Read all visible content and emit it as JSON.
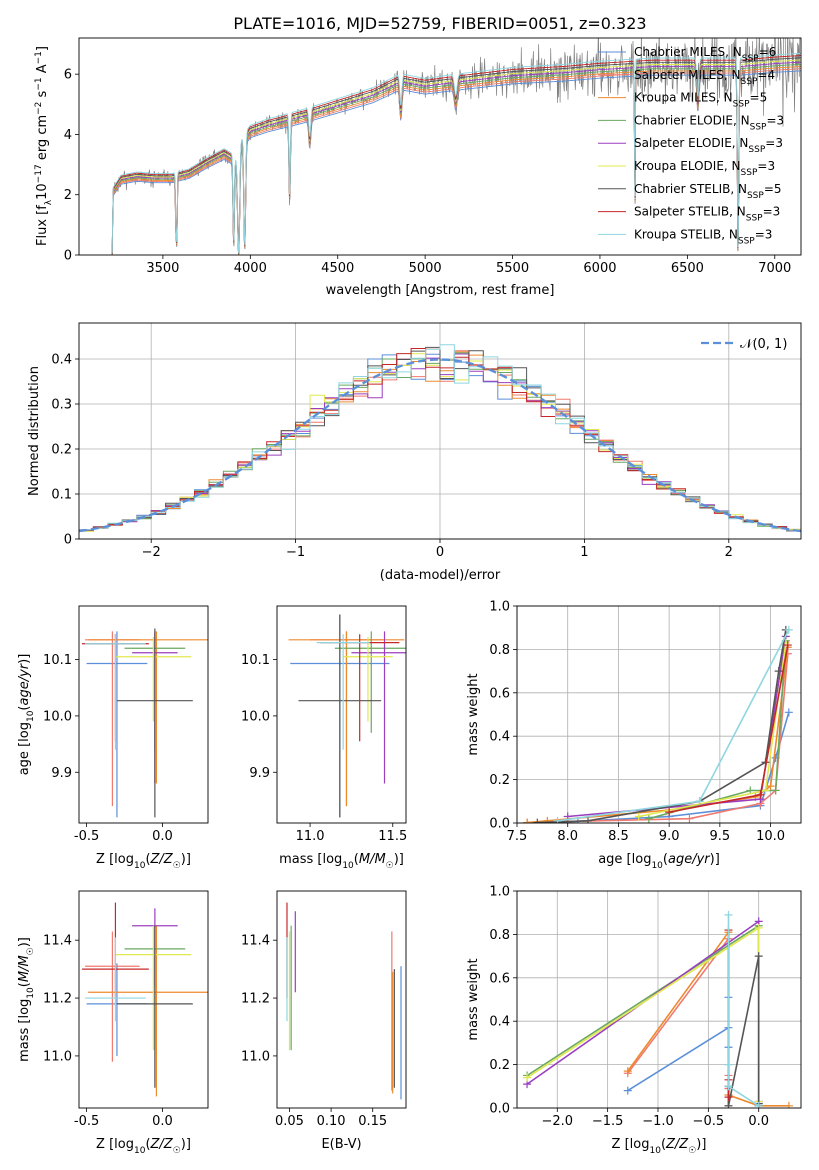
{
  "figure": {
    "title": "PLATE=1016, MJD=52759, FIBERID=0051, z=0.323"
  },
  "series_styles": [
    {
      "name": "Chabrier MILES",
      "nssp": "6",
      "color": "#5b8fd9"
    },
    {
      "name": "Salpeter MILES",
      "nssp": "4",
      "color": "#f07a6f"
    },
    {
      "name": "Kroupa MILES",
      "nssp": "5",
      "color": "#ee8a2e"
    },
    {
      "name": "Chabrier ELODIE",
      "nssp": "3",
      "color": "#6aa860"
    },
    {
      "name": "Salpeter ELODIE",
      "nssp": "3",
      "color": "#9b3fbf"
    },
    {
      "name": "Kroupa ELODIE",
      "nssp": "3",
      "color": "#e0e84f"
    },
    {
      "name": "Chabrier STELIB",
      "nssp": "5",
      "color": "#555555"
    },
    {
      "name": "Salpeter STELIB",
      "nssp": "3",
      "color": "#c62828"
    },
    {
      "name": "Kroupa STELIB",
      "nssp": "3",
      "color": "#8fd6e0"
    }
  ],
  "chart_data": [
    {
      "id": "spectrum",
      "type": "line",
      "xlabel": "wavelength [Angstrom, rest frame]",
      "ylabel": "Flux [f_λ 10^-17 erg cm^-2 s^-1 A^-1]",
      "xlim": [
        3020,
        7150
      ],
      "ylim": [
        0,
        7.2
      ],
      "xticks": [
        3500,
        4000,
        4500,
        5000,
        5500,
        6000,
        6500,
        7000
      ],
      "yticks": [
        0,
        2,
        4,
        6
      ],
      "legend_position": "top-right",
      "data_series": {
        "name": "",
        "color": "#808080"
      },
      "continuum_knots": [
        [
          3210,
          0
        ],
        [
          3215,
          2.1
        ],
        [
          3260,
          2.5
        ],
        [
          3350,
          2.6
        ],
        [
          3450,
          2.55
        ],
        [
          3550,
          2.55
        ],
        [
          3650,
          2.7
        ],
        [
          3750,
          3.05
        ],
        [
          3850,
          3.35
        ],
        [
          3920,
          3.1
        ],
        [
          3940,
          3.6
        ],
        [
          4000,
          4.1
        ],
        [
          4100,
          4.3
        ],
        [
          4200,
          4.45
        ],
        [
          4300,
          4.6
        ],
        [
          4500,
          4.95
        ],
        [
          4700,
          5.3
        ],
        [
          4860,
          5.75
        ],
        [
          5000,
          5.6
        ],
        [
          5200,
          5.75
        ],
        [
          5500,
          5.95
        ],
        [
          5800,
          6.05
        ],
        [
          6000,
          6.15
        ],
        [
          6300,
          6.25
        ],
        [
          6600,
          6.25
        ],
        [
          6800,
          6.25
        ],
        [
          7000,
          6.35
        ],
        [
          7150,
          6.4
        ]
      ]
    },
    {
      "id": "residuals",
      "type": "histogram",
      "xlabel": "(data-model)/error",
      "ylabel": "Normed distribution",
      "xlim": [
        -2.5,
        2.5
      ],
      "ylim": [
        0,
        0.48
      ],
      "xticks": [
        -2,
        -1,
        0,
        1,
        2
      ],
      "yticks": [
        0,
        0.1,
        0.2,
        0.3,
        0.4
      ],
      "bin_width": 0.1,
      "grid": true,
      "legend": [
        {
          "label": "𝒩(0, 1)",
          "style": "dashed",
          "color": "#5b8fd9"
        }
      ],
      "legend_position": "top-right"
    },
    {
      "id": "age_vs_Z",
      "type": "errorbar",
      "xlabel": "Z [log10(Z/Z☉)]",
      "ylabel": "age [log10(age/yr)]",
      "xlim": [
        -0.55,
        0.3
      ],
      "ylim": [
        9.81,
        10.195
      ],
      "xticks": [
        -0.5,
        0.0
      ],
      "xtick_labels": [
        "-0.5",
        "0.0"
      ],
      "yticks": [
        9.9,
        10.0,
        10.1
      ],
      "ytick_labels": [
        "9.9",
        "10.0",
        "10.1"
      ],
      "points": [
        {
          "x": -0.3,
          "y": 10.093,
          "xerr": 0.2,
          "ylo": 9.82,
          "yhi": 10.15,
          "color": "#5b8fd9"
        },
        {
          "x": -0.33,
          "y": 10.135,
          "xerr": 0.18,
          "ylo": 9.84,
          "yhi": 10.15,
          "color": "#f07a6f"
        },
        {
          "x": -0.04,
          "y": 10.135,
          "xerr": 0.45,
          "ylo": 9.88,
          "yhi": 10.15,
          "color": "#ee8a2e"
        },
        {
          "x": -0.05,
          "y": 10.12,
          "xerr": 0.2,
          "ylo": 9.94,
          "yhi": 10.15,
          "color": "#6aa860"
        },
        {
          "x": -0.05,
          "y": 10.112,
          "xerr": 0.15,
          "ylo": 9.88,
          "yhi": 10.15,
          "color": "#9b3fbf"
        },
        {
          "x": -0.06,
          "y": 10.105,
          "xerr": 0.25,
          "ylo": 9.99,
          "yhi": 10.14,
          "color": "#e0e84f"
        },
        {
          "x": -0.05,
          "y": 10.027,
          "xerr": 0.25,
          "ylo": 9.82,
          "yhi": 10.155,
          "color": "#555555"
        },
        {
          "x": -0.31,
          "y": 10.128,
          "xerr": 0.22,
          "ylo": 9.955,
          "yhi": 10.145,
          "color": "#c62828"
        },
        {
          "x": -0.31,
          "y": 10.128,
          "xerr": 0.2,
          "ylo": 9.94,
          "yhi": 10.145,
          "color": "#8fd6e0"
        }
      ]
    },
    {
      "id": "age_vs_mass",
      "type": "errorbar",
      "xlabel": "mass [log10(M/M☉)]",
      "ylabel": "",
      "xlim": [
        10.8,
        11.58
      ],
      "ylim": [
        9.81,
        10.195
      ],
      "xticks": [
        11.0,
        11.5
      ],
      "xtick_labels": [
        "11.0",
        "11.5"
      ],
      "yticks": [
        9.9,
        10.0,
        10.1
      ],
      "ytick_labels": [
        "9.9",
        "10.0",
        "10.1"
      ],
      "points": [
        {
          "x": 11.18,
          "y": 10.093,
          "xerr": 0.3,
          "ylo": 9.82,
          "yhi": 10.18,
          "color": "#5b8fd9"
        },
        {
          "x": 11.22,
          "y": 10.135,
          "xerr": 0.22,
          "ylo": 9.84,
          "yhi": 10.15,
          "color": "#f07a6f"
        },
        {
          "x": 11.22,
          "y": 10.135,
          "xerr": 0.35,
          "ylo": 9.84,
          "yhi": 10.15,
          "color": "#ee8a2e"
        },
        {
          "x": 11.37,
          "y": 10.12,
          "xerr": 0.22,
          "ylo": 9.97,
          "yhi": 10.15,
          "color": "#6aa860"
        },
        {
          "x": 11.45,
          "y": 10.112,
          "xerr": 0.2,
          "ylo": 9.88,
          "yhi": 10.15,
          "color": "#9b3fbf"
        },
        {
          "x": 11.35,
          "y": 10.105,
          "xerr": 0.15,
          "ylo": 9.99,
          "yhi": 10.14,
          "color": "#e0e84f"
        },
        {
          "x": 11.18,
          "y": 10.027,
          "xerr": 0.25,
          "ylo": 9.82,
          "yhi": 10.18,
          "color": "#555555"
        },
        {
          "x": 11.3,
          "y": 10.13,
          "xerr": 0.24,
          "ylo": 9.955,
          "yhi": 10.145,
          "color": "#c62828"
        },
        {
          "x": 11.2,
          "y": 10.13,
          "xerr": 0.16,
          "ylo": 9.94,
          "yhi": 10.145,
          "color": "#8fd6e0"
        }
      ]
    },
    {
      "id": "mass_weight_vs_age",
      "type": "line",
      "xlabel": "age [log10(age/yr)]",
      "ylabel": "mass weight",
      "xlim": [
        7.5,
        10.3
      ],
      "ylim": [
        0,
        1.0
      ],
      "xticks": [
        7.5,
        8.0,
        8.5,
        9.0,
        9.5,
        10.0
      ],
      "xtick_labels": [
        "7.5",
        "8.0",
        "8.5",
        "9.0",
        "9.5",
        "10.0"
      ],
      "yticks": [
        0,
        0.2,
        0.4,
        0.6,
        0.8,
        1.0
      ],
      "ytick_labels": [
        "0.0",
        "0.2",
        "0.4",
        "0.6",
        "0.8",
        "1.0"
      ],
      "grid": true,
      "series": [
        {
          "color": "#5b8fd9",
          "x": [
            7.6,
            8.1,
            9.0,
            9.9,
            10.05,
            10.18
          ],
          "y": [
            0.002,
            0.008,
            0.03,
            0.08,
            0.3,
            0.51
          ]
        },
        {
          "color": "#f07a6f",
          "x": [
            7.8,
            9.2,
            9.9,
            10.05,
            10.17
          ],
          "y": [
            0.005,
            0.02,
            0.09,
            0.15,
            0.78
          ]
        },
        {
          "color": "#ee8a2e",
          "x": [
            7.6,
            7.8,
            9.0,
            9.85,
            10.0,
            10.17
          ],
          "y": [
            0.002,
            0.01,
            0.06,
            0.12,
            0.17,
            0.81
          ]
        },
        {
          "color": "#6aa860",
          "x": [
            8.8,
            9.8,
            10.05,
            10.15
          ],
          "y": [
            0.02,
            0.15,
            0.15,
            0.84
          ]
        },
        {
          "color": "#9b3fbf",
          "x": [
            8.0,
            9.9,
            10.15
          ],
          "y": [
            0.03,
            0.11,
            0.86
          ]
        },
        {
          "color": "#e0e84f",
          "x": [
            8.7,
            9.95,
            10.15
          ],
          "y": [
            0.03,
            0.15,
            0.83
          ]
        },
        {
          "color": "#555555",
          "x": [
            7.7,
            8.2,
            9.3,
            9.95,
            10.08,
            10.15
          ],
          "y": [
            0.002,
            0.01,
            0.1,
            0.28,
            0.7,
            0.89
          ]
        },
        {
          "color": "#c62828",
          "x": [
            9.0,
            9.9,
            10.17
          ],
          "y": [
            0.05,
            0.13,
            0.82
          ]
        },
        {
          "color": "#8fd6e0",
          "x": [
            7.9,
            9.3,
            10.18
          ],
          "y": [
            0.01,
            0.1,
            0.89
          ]
        }
      ]
    },
    {
      "id": "mass_vs_Z",
      "type": "errorbar",
      "xlabel": "Z [log10(Z/Z☉)]",
      "ylabel": "mass [log10(M/M☉)]",
      "xlim": [
        -0.55,
        0.3
      ],
      "ylim": [
        10.82,
        11.57
      ],
      "xticks": [
        -0.5,
        0.0
      ],
      "xtick_labels": [
        "-0.5",
        "0.0"
      ],
      "yticks": [
        11.0,
        11.2,
        11.4
      ],
      "ytick_labels": [
        "11.0",
        "11.2",
        "11.4"
      ],
      "points": [
        {
          "x": -0.3,
          "y": 11.18,
          "xerr": 0.2,
          "ylo": 11.0,
          "yhi": 11.32,
          "color": "#5b8fd9"
        },
        {
          "x": -0.33,
          "y": 11.31,
          "xerr": 0.18,
          "ylo": 10.98,
          "yhi": 11.43,
          "color": "#f07a6f"
        },
        {
          "x": -0.04,
          "y": 11.22,
          "xerr": 0.45,
          "ylo": 10.86,
          "yhi": 11.45,
          "color": "#ee8a2e"
        },
        {
          "x": -0.05,
          "y": 11.37,
          "xerr": 0.2,
          "ylo": 11.02,
          "yhi": 11.45,
          "color": "#6aa860"
        },
        {
          "x": -0.05,
          "y": 11.45,
          "xerr": 0.15,
          "ylo": 11.24,
          "yhi": 11.51,
          "color": "#9b3fbf"
        },
        {
          "x": -0.06,
          "y": 11.35,
          "xerr": 0.25,
          "ylo": 11.02,
          "yhi": 11.45,
          "color": "#e0e84f"
        },
        {
          "x": -0.05,
          "y": 11.18,
          "xerr": 0.25,
          "ylo": 10.89,
          "yhi": 11.45,
          "color": "#555555"
        },
        {
          "x": -0.31,
          "y": 11.3,
          "xerr": 0.22,
          "ylo": 11.2,
          "yhi": 11.53,
          "color": "#c62828"
        },
        {
          "x": -0.31,
          "y": 11.2,
          "xerr": 0.2,
          "ylo": 11.12,
          "yhi": 11.41,
          "color": "#8fd6e0"
        }
      ]
    },
    {
      "id": "mass_vs_ebv",
      "type": "errorbar",
      "xlabel": "E(B-V)",
      "ylabel": "",
      "xlim": [
        0.035,
        0.19
      ],
      "ylim": [
        10.82,
        11.57
      ],
      "xticks": [
        0.05,
        0.1,
        0.15
      ],
      "xtick_labels": [
        "0.05",
        "0.10",
        "0.15"
      ],
      "yticks": [
        11.0,
        11.2,
        11.4
      ],
      "ytick_labels": [
        "11.0",
        "11.2",
        "11.4"
      ],
      "points": [
        {
          "x": 0.184,
          "y": 11.18,
          "ylo": 10.85,
          "yhi": 11.31,
          "color": "#5b8fd9"
        },
        {
          "x": 0.173,
          "y": 11.31,
          "ylo": 10.88,
          "yhi": 11.43,
          "color": "#f07a6f"
        },
        {
          "x": 0.174,
          "y": 11.22,
          "ylo": 10.87,
          "yhi": 11.29,
          "color": "#ee8a2e"
        },
        {
          "x": 0.052,
          "y": 11.37,
          "ylo": 11.02,
          "yhi": 11.45,
          "color": "#6aa860"
        },
        {
          "x": 0.057,
          "y": 11.45,
          "ylo": 11.22,
          "yhi": 11.5,
          "color": "#9b3fbf"
        },
        {
          "x": 0.05,
          "y": 11.35,
          "ylo": 11.02,
          "yhi": 11.43,
          "color": "#e0e84f"
        },
        {
          "x": 0.176,
          "y": 11.18,
          "ylo": 10.89,
          "yhi": 11.3,
          "color": "#555555"
        },
        {
          "x": 0.047,
          "y": 11.3,
          "ylo": 11.2,
          "yhi": 11.53,
          "color": "#c62828"
        },
        {
          "x": 0.047,
          "y": 11.2,
          "ylo": 11.12,
          "yhi": 11.41,
          "color": "#8fd6e0"
        }
      ]
    },
    {
      "id": "mass_weight_vs_Z",
      "type": "line",
      "xlabel": "Z [log10(Z/Z☉)]",
      "ylabel": "mass weight",
      "xlim": [
        -2.4,
        0.42
      ],
      "ylim": [
        0,
        1.0
      ],
      "xticks": [
        -2.0,
        -1.5,
        -1.0,
        -0.5,
        0.0
      ],
      "xtick_labels": [
        "−2.0",
        "−1.5",
        "−1.0",
        "−0.5",
        "0.0"
      ],
      "yticks": [
        0,
        0.2,
        0.4,
        0.6,
        0.8,
        1.0
      ],
      "ytick_labels": [
        "0.0",
        "0.2",
        "0.4",
        "0.6",
        "0.8",
        "1.0"
      ],
      "grid": true,
      "series": [
        {
          "color": "#5b8fd9",
          "x": [
            -1.3,
            -0.3,
            -0.3,
            -0.3,
            -0.3,
            -0.3
          ],
          "y": [
            0.08,
            0.37,
            0.51,
            0.28,
            0.09,
            0.01
          ]
        },
        {
          "color": "#f07a6f",
          "x": [
            -1.3,
            -0.3,
            -0.3,
            -0.3,
            -0.3
          ],
          "y": [
            0.16,
            0.78,
            0.15,
            0.09,
            0.01
          ]
        },
        {
          "color": "#ee8a2e",
          "x": [
            -1.3,
            -0.3,
            -0.3,
            0.0,
            0.3
          ],
          "y": [
            0.17,
            0.81,
            0.06,
            0.01,
            0.01
          ]
        },
        {
          "color": "#6aa860",
          "x": [
            -2.3,
            0.0,
            0.0
          ],
          "y": [
            0.15,
            0.84,
            0.02
          ]
        },
        {
          "color": "#9b3fbf",
          "x": [
            -2.3,
            0.0,
            0.0
          ],
          "y": [
            0.11,
            0.86,
            0.03
          ]
        },
        {
          "color": "#e0e84f",
          "x": [
            -2.3,
            0.0,
            0.0
          ],
          "y": [
            0.14,
            0.83,
            0.03
          ]
        },
        {
          "color": "#555555",
          "x": [
            -0.3,
            -0.3,
            0.0,
            0.0,
            0.0
          ],
          "y": [
            0.1,
            0.01,
            0.7,
            0.01,
            0.02
          ]
        },
        {
          "color": "#c62828",
          "x": [
            -0.3,
            -0.3,
            -0.3
          ],
          "y": [
            0.82,
            0.13,
            0.05
          ]
        },
        {
          "color": "#8fd6e0",
          "x": [
            -0.3,
            -0.3,
            -0.3,
            0.0
          ],
          "y": [
            0.89,
            0.2,
            0.1,
            0.01
          ]
        }
      ]
    }
  ]
}
